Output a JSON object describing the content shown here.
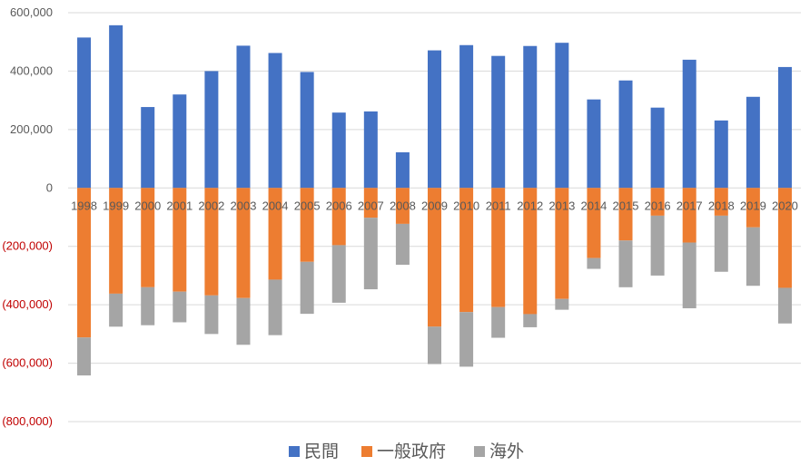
{
  "chart_data": {
    "type": "bar",
    "stacked": true,
    "categories": [
      "1998",
      "1999",
      "2000",
      "2001",
      "2002",
      "2003",
      "2004",
      "2005",
      "2006",
      "2007",
      "2008",
      "2009",
      "2010",
      "2011",
      "2012",
      "2013",
      "2014",
      "2015",
      "2016",
      "2017",
      "2018",
      "2019",
      "2020"
    ],
    "series": [
      {
        "name": "民間",
        "color": "#4472C4",
        "values": [
          515000,
          557000,
          277000,
          320000,
          400000,
          487000,
          462000,
          397000,
          258000,
          262000,
          122000,
          471000,
          489000,
          452000,
          486000,
          497000,
          303000,
          368000,
          275000,
          439000,
          231000,
          312000,
          414000
        ]
      },
      {
        "name": "一般政府",
        "color": "#ED7D31",
        "values": [
          -512000,
          -362000,
          -340000,
          -355000,
          -368000,
          -377000,
          -314000,
          -253000,
          -196000,
          -102000,
          -123000,
          -475000,
          -425000,
          -408000,
          -432000,
          -380000,
          -240000,
          -180000,
          -95000,
          -187000,
          -95000,
          -135000,
          -342000
        ]
      },
      {
        "name": "海外",
        "color": "#A5A5A5",
        "values": [
          -130000,
          -113000,
          -130000,
          -105000,
          -132000,
          -160000,
          -190000,
          -178000,
          -197000,
          -245000,
          -140000,
          -128000,
          -187000,
          -105000,
          -45000,
          -37000,
          -37000,
          -160000,
          -205000,
          -225000,
          -192000,
          -200000,
          -122000
        ]
      }
    ],
    "ylim": [
      -800000,
      600000
    ],
    "yticks": [
      {
        "value": 600000,
        "label": "600,000"
      },
      {
        "value": 400000,
        "label": "400,000"
      },
      {
        "value": 200000,
        "label": "200,000"
      },
      {
        "value": 0,
        "label": "0"
      },
      {
        "value": -200000,
        "label": "(200,000)"
      },
      {
        "value": -400000,
        "label": "(400,000)"
      },
      {
        "value": -600000,
        "label": "(600,000)"
      },
      {
        "value": -800000,
        "label": "(800,000)"
      }
    ],
    "positive_tick_color": "#595959",
    "negative_tick_color": "#C00000",
    "category_label_color": "#595959",
    "gridline_color": "#D9D9D9",
    "grid": true,
    "legend_position": "bottom"
  }
}
